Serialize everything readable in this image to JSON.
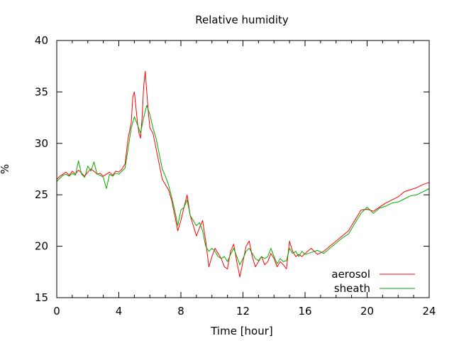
{
  "chart_data": {
    "type": "line",
    "title": "Relative humidity",
    "xlabel": "Time [hour]",
    "ylabel": "%",
    "xlim": [
      0,
      24
    ],
    "ylim": [
      15,
      40
    ],
    "xticks": [
      0,
      4,
      8,
      12,
      16,
      20,
      24
    ],
    "yticks": [
      15,
      20,
      25,
      30,
      35,
      40
    ],
    "xtick_labels": [
      "0",
      "4",
      "8",
      "12",
      "16",
      "20",
      "24"
    ],
    "ytick_labels": [
      "15",
      "20",
      "25",
      "30",
      "35",
      "40"
    ],
    "grid": false,
    "legend": "bottom-right",
    "series": [
      {
        "name": "aerosol",
        "color": "#ff0000",
        "x": [
          0.0,
          0.2,
          0.4,
          0.6,
          0.8,
          1.0,
          1.2,
          1.4,
          1.6,
          1.8,
          2.0,
          2.2,
          2.4,
          2.6,
          2.8,
          3.0,
          3.2,
          3.4,
          3.6,
          3.8,
          4.0,
          4.2,
          4.4,
          4.6,
          4.8,
          4.9,
          5.0,
          5.1,
          5.2,
          5.3,
          5.4,
          5.5,
          5.6,
          5.7,
          5.8,
          5.9,
          6.0,
          6.2,
          6.4,
          6.6,
          6.8,
          7.0,
          7.2,
          7.4,
          7.6,
          7.8,
          8.0,
          8.2,
          8.4,
          8.6,
          8.8,
          9.0,
          9.2,
          9.4,
          9.6,
          9.8,
          10.0,
          10.2,
          10.4,
          10.6,
          10.8,
          11.0,
          11.2,
          11.4,
          11.6,
          11.8,
          12.0,
          12.2,
          12.4,
          12.6,
          12.8,
          13.0,
          13.2,
          13.4,
          13.6,
          13.8,
          14.0,
          14.2,
          14.4,
          14.6,
          14.8,
          15.0,
          15.2,
          15.4,
          15.6,
          15.8,
          16.0,
          16.4,
          16.8,
          17.2,
          17.6,
          18.0,
          18.4,
          18.8,
          19.2,
          19.6,
          20.0,
          20.4,
          20.8,
          21.2,
          21.6,
          22.0,
          22.4,
          22.8,
          23.2,
          23.6,
          24.0
        ],
        "values": [
          26.5,
          26.8,
          27.0,
          27.2,
          26.9,
          27.3,
          27.0,
          27.4,
          27.1,
          26.8,
          27.2,
          27.5,
          27.3,
          27.0,
          27.1,
          26.8,
          27.0,
          27.2,
          26.9,
          27.3,
          27.2,
          27.5,
          28.0,
          30.5,
          32.0,
          34.5,
          35.0,
          33.5,
          32.0,
          31.0,
          30.5,
          32.5,
          35.5,
          37.0,
          35.0,
          33.0,
          31.5,
          31.0,
          29.5,
          28.0,
          26.5,
          26.0,
          25.5,
          24.5,
          23.0,
          21.5,
          22.5,
          23.8,
          25.0,
          23.0,
          22.0,
          21.0,
          21.8,
          22.5,
          20.5,
          18.0,
          19.0,
          19.8,
          19.3,
          18.8,
          18.0,
          17.8,
          19.5,
          20.2,
          18.5,
          17.0,
          18.5,
          20.0,
          20.5,
          19.0,
          18.0,
          18.5,
          19.0,
          18.2,
          18.5,
          19.3,
          18.8,
          18.0,
          18.5,
          18.2,
          17.8,
          20.5,
          19.5,
          19.0,
          19.2,
          19.0,
          19.3,
          19.8,
          19.2,
          19.5,
          20.0,
          20.5,
          21.0,
          21.5,
          22.5,
          23.5,
          23.6,
          23.4,
          23.8,
          24.2,
          24.5,
          24.8,
          25.3,
          25.5,
          25.7,
          26.0,
          26.2
        ]
      },
      {
        "name": "sheath",
        "color": "#00aa00",
        "x": [
          0.0,
          0.2,
          0.4,
          0.6,
          0.8,
          1.0,
          1.2,
          1.4,
          1.6,
          1.8,
          2.0,
          2.2,
          2.4,
          2.6,
          2.8,
          3.0,
          3.2,
          3.4,
          3.6,
          3.8,
          4.0,
          4.2,
          4.4,
          4.6,
          4.8,
          5.0,
          5.2,
          5.4,
          5.6,
          5.8,
          6.0,
          6.2,
          6.4,
          6.6,
          6.8,
          7.0,
          7.2,
          7.4,
          7.6,
          7.8,
          8.0,
          8.2,
          8.4,
          8.6,
          8.8,
          9.0,
          9.2,
          9.4,
          9.6,
          9.8,
          10.0,
          10.2,
          10.4,
          10.6,
          10.8,
          11.0,
          11.2,
          11.4,
          11.6,
          11.8,
          12.0,
          12.2,
          12.4,
          12.6,
          12.8,
          13.0,
          13.2,
          13.4,
          13.6,
          13.8,
          14.0,
          14.2,
          14.4,
          14.6,
          14.8,
          15.0,
          15.2,
          15.4,
          15.6,
          15.8,
          16.0,
          16.4,
          16.8,
          17.2,
          17.6,
          18.0,
          18.4,
          18.8,
          19.2,
          19.6,
          20.0,
          20.4,
          20.8,
          21.2,
          21.6,
          22.0,
          22.4,
          22.8,
          23.2,
          23.6,
          24.0
        ],
        "values": [
          26.3,
          26.6,
          26.9,
          27.0,
          26.8,
          27.1,
          26.9,
          28.3,
          27.0,
          26.7,
          27.8,
          27.3,
          28.2,
          27.0,
          26.9,
          26.7,
          25.6,
          27.0,
          26.8,
          27.1,
          27.0,
          27.3,
          27.6,
          29.5,
          31.5,
          32.6,
          31.8,
          31.0,
          32.5,
          33.7,
          32.8,
          31.5,
          30.5,
          29.0,
          27.5,
          26.8,
          26.0,
          24.8,
          23.5,
          22.0,
          23.5,
          23.8,
          24.5,
          23.0,
          22.5,
          22.0,
          22.3,
          21.5,
          20.0,
          19.5,
          19.8,
          19.5,
          19.0,
          18.8,
          19.0,
          18.5,
          19.2,
          19.8,
          19.0,
          18.2,
          18.8,
          19.5,
          19.8,
          19.3,
          18.8,
          18.6,
          19.0,
          18.8,
          19.0,
          19.8,
          19.0,
          18.3,
          18.8,
          18.5,
          18.6,
          19.8,
          19.3,
          19.5,
          19.0,
          19.5,
          19.2,
          19.4,
          19.6,
          19.3,
          19.8,
          20.3,
          20.8,
          21.2,
          22.2,
          23.2,
          23.8,
          23.2,
          23.7,
          23.9,
          24.2,
          24.3,
          24.6,
          24.9,
          25.0,
          25.3,
          25.6
        ]
      }
    ]
  }
}
